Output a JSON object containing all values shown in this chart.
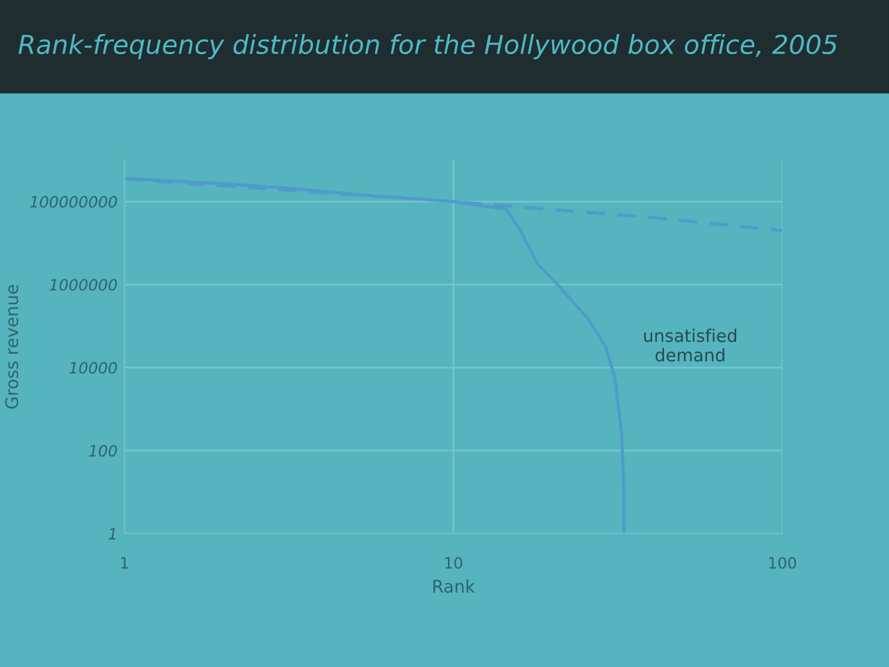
{
  "chart_data": {
    "type": "line",
    "title": "Rank-frequency distribution for the Hollywood box office, 2005",
    "xlabel": "Rank",
    "ylabel": "Gross revenue",
    "log": "xy",
    "grid": true,
    "marker": "none",
    "xlim": [
      1,
      100
    ],
    "xticks": [
      1,
      10,
      100
    ],
    "ylim": [
      1,
      1000000000
    ],
    "yticks": [
      1,
      100,
      10000,
      1000000,
      100000000
    ],
    "series": [
      {
        "color": "#4d9ccc",
        "line_style": "solid",
        "x": [
          1,
          2,
          3.4,
          5,
          10,
          14.5,
          16,
          18,
          21,
          25.5,
          29,
          31,
          32.5,
          33,
          33
        ],
        "values": [
          360000000,
          270000000,
          200000000,
          150000000,
          100000000,
          65000000,
          20000000,
          3200000,
          900000,
          160000,
          33000,
          5500,
          240,
          10,
          1
        ]
      },
      {
        "color": "#4d9ccc",
        "line_style": "dashed",
        "x": [
          1,
          10,
          42,
          100
        ],
        "values": [
          350000000,
          100000000,
          40000000,
          20000000
        ]
      }
    ],
    "annotations": [
      "unsatisfied\ndemand"
    ]
  }
}
